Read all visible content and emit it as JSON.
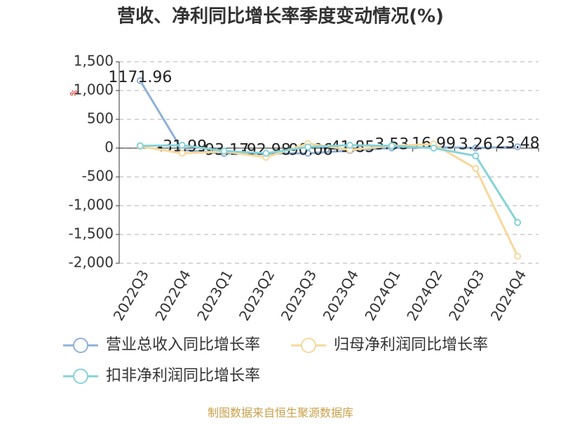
{
  "chart_data": {
    "type": "line",
    "title": "营收、净利同比增长率季度变动情况(%)",
    "ylabel": "%",
    "categories": [
      "2022Q3",
      "2022Q4",
      "2023Q1",
      "2023Q2",
      "2023Q3",
      "2023Q4",
      "2024Q1",
      "2024Q2",
      "2024Q3",
      "2024Q4"
    ],
    "series": [
      {
        "name": "营业总收入同比增长率",
        "color": "#8fb0d8",
        "values": [
          1171.96,
          -31.99,
          -93.17,
          -92.98,
          -90.06,
          -41.85,
          3.53,
          16.99,
          3.26,
          23.48
        ],
        "data_labels": true
      },
      {
        "name": "归母净利润同比增长率",
        "color": "#f7d89c",
        "values": [
          30,
          -90,
          -60,
          -160,
          80,
          -30,
          40,
          70,
          -354,
          -1878
        ],
        "data_labels": false
      },
      {
        "name": "扣非净利润同比增长率",
        "color": "#86d3d8",
        "values": [
          40,
          50,
          -50,
          -90,
          20,
          50,
          40,
          0,
          -134,
          -1293
        ],
        "data_labels": false
      }
    ],
    "ylim": [
      -2000,
      1500
    ],
    "yticks": [
      {
        "value": 1500,
        "label": "1,500"
      },
      {
        "value": 1000,
        "label": "1,000"
      },
      500,
      0,
      -500,
      {
        "value": -1000,
        "label": "-1,000"
      },
      {
        "value": -1500,
        "label": "-1,500"
      },
      {
        "value": -2000,
        "label": "-2,000"
      }
    ],
    "grid": true,
    "source": "制图数据来自恒生聚源数据库"
  }
}
